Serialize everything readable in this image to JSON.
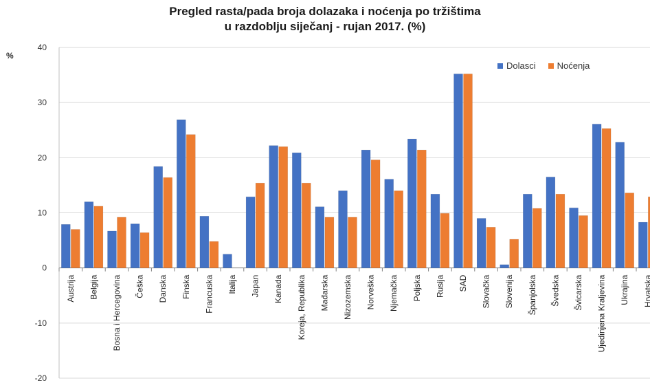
{
  "chart_data": {
    "type": "bar",
    "title_line1": "Pregled rasta/pada broja dolazaka i noćenja po tržištima",
    "title_line2": "u razdoblju siječanj - rujan 2017. (%)",
    "ylabel": "%",
    "ylim": [
      -20,
      40
    ],
    "yticks": [
      -20,
      -10,
      0,
      10,
      20,
      30,
      40
    ],
    "grid": true,
    "legend_position": "top-right",
    "categories": [
      "Austrija",
      "Belgija",
      "Bosna i Hercegovina",
      "Češka",
      "Danska",
      "Finska",
      "Francuska",
      "Italija",
      "Japan",
      "Kanada",
      "Koreja, Republika",
      "Mađarska",
      "Nizozemska",
      "Norveška",
      "Njemačka",
      "Poljska",
      "Rusija",
      "SAD",
      "Slovačka",
      "Slovenija",
      "Španjolska",
      "Švedska",
      "Švicarska",
      "Ujedinjena Kraljevina",
      "Ukrajina",
      "Hrvatska"
    ],
    "series": [
      {
        "name": "Dolasci",
        "color": "#4472c4",
        "values": [
          7.9,
          12.0,
          6.7,
          8.0,
          18.4,
          26.9,
          9.4,
          2.5,
          12.9,
          22.2,
          20.9,
          11.1,
          14.0,
          21.4,
          16.1,
          23.4,
          13.4,
          35.2,
          9.0,
          0.6,
          13.4,
          16.5,
          10.9,
          26.1,
          22.8,
          8.3
        ]
      },
      {
        "name": "Noćenja",
        "color": "#ed7d31",
        "values": [
          7.0,
          11.2,
          9.2,
          6.4,
          16.4,
          24.2,
          4.8,
          0.0,
          15.4,
          22.0,
          15.4,
          9.2,
          9.2,
          19.6,
          14.0,
          21.4,
          9.9,
          35.2,
          7.4,
          5.2,
          10.8,
          13.4,
          9.5,
          25.3,
          13.6,
          12.9
        ]
      }
    ]
  }
}
